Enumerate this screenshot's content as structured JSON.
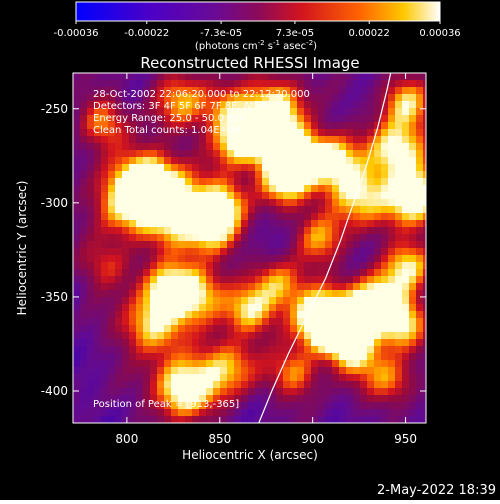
{
  "colorbar": {
    "tick_labels": [
      "-0.00036",
      "-0.00022",
      "-7.3e-05",
      "7.3e-05",
      "0.00022",
      "0.00036"
    ],
    "tick_values": [
      -0.00036,
      -0.00022,
      -7.3e-05,
      7.3e-05,
      0.00022,
      0.00036
    ],
    "range": [
      -0.00036,
      0.00036
    ],
    "unit_prefix": "(photons cm",
    "unit_exp1": "-2",
    "unit_mid": " s",
    "unit_exp2": "-1",
    "unit_mid2": " asec",
    "unit_exp3": "-2",
    "unit_suffix": ")"
  },
  "chart_data": {
    "type": "heatmap",
    "title": "Reconstructed RHESSI Image",
    "xlabel": "Heliocentric X (arcsec)",
    "ylabel": "Heliocentric Y (arcsec)",
    "xlim": [
      771,
      961
    ],
    "ylim": [
      -417,
      -231
    ],
    "x_ticks": [
      800,
      850,
      900,
      950
    ],
    "y_ticks": [
      -250,
      -300,
      -350,
      -400
    ],
    "x_tick_labels": [
      "800",
      "850",
      "900",
      "950"
    ],
    "y_tick_labels": [
      "-250",
      "-300",
      "-350",
      "-400"
    ],
    "annotations": [
      "28-Oct-2002 22:06:20.000 to 22:12:20.000",
      "Detectors: 3F 4F 5F 6F 7F 8F, Att 0",
      "Energy Range: 25.0 - 50.0 keV",
      "Clean     Total counts: 1.04E+04",
      "Position of Peak = [913,-365]"
    ],
    "peak_position": [
      913,
      -365
    ],
    "limb": [
      [
        871,
        -417
      ],
      [
        878,
        -400
      ],
      [
        887,
        -380
      ],
      [
        897,
        -360
      ],
      [
        907,
        -340
      ],
      [
        915,
        -320
      ],
      [
        922,
        -300
      ],
      [
        929,
        -280
      ],
      [
        935,
        -260
      ],
      [
        940,
        -240
      ],
      [
        942,
        -231
      ]
    ],
    "grid": false
  },
  "footer": {
    "timestamp": "2-May-2022 18:39"
  }
}
